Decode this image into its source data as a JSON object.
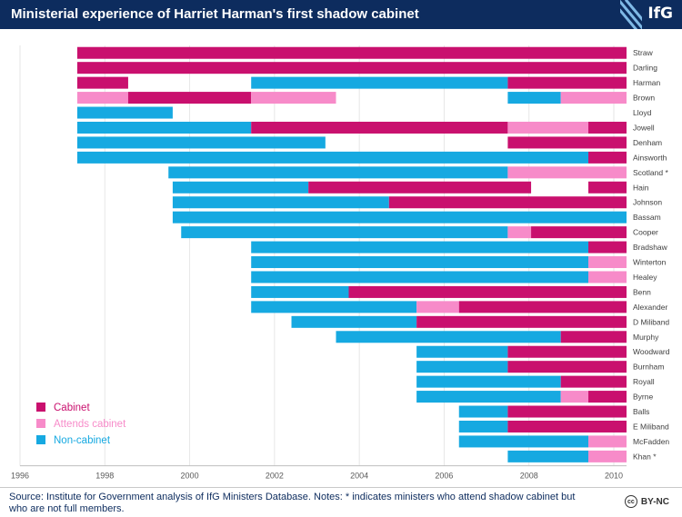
{
  "header": {
    "title": "Ministerial experience of Harriet Harman's first shadow cabinet",
    "logo": "IfG"
  },
  "footer": {
    "source": "Source: Institute for Government analysis of IfG Ministers Database. Notes: * indicates ministers who attend shadow cabinet but who are not full members.",
    "license": "BY-NC",
    "license_icon": "creative-commons-icon"
  },
  "chart_data": {
    "type": "bar",
    "orientation": "horizontal-timeline",
    "xlim": [
      1996,
      2010.3
    ],
    "x_ticks": [
      1996,
      1998,
      2000,
      2002,
      2004,
      2006,
      2008,
      2010
    ],
    "grid": true,
    "legend_position": "bottom-left",
    "legend": [
      {
        "key": "cabinet",
        "label": "Cabinet"
      },
      {
        "key": "attends",
        "label": "Attends cabinet"
      },
      {
        "key": "noncabinet",
        "label": "Non-cabinet"
      }
    ],
    "colors": {
      "cabinet": "#c9106e",
      "attends": "#f78bc9",
      "noncabinet": "#16a9e1"
    },
    "rows": [
      {
        "name": "Straw",
        "segments": [
          [
            1997.35,
            2010.3,
            "cabinet"
          ]
        ]
      },
      {
        "name": "Darling",
        "segments": [
          [
            1997.35,
            2010.3,
            "cabinet"
          ]
        ]
      },
      {
        "name": "Harman",
        "segments": [
          [
            1997.35,
            1998.55,
            "cabinet"
          ],
          [
            2001.45,
            2007.5,
            "noncabinet"
          ],
          [
            2007.5,
            2010.3,
            "cabinet"
          ]
        ]
      },
      {
        "name": "Brown",
        "segments": [
          [
            1997.35,
            1998.55,
            "attends"
          ],
          [
            1998.55,
            2001.45,
            "cabinet"
          ],
          [
            2001.45,
            2003.45,
            "attends"
          ],
          [
            2007.5,
            2008.75,
            "noncabinet"
          ],
          [
            2008.75,
            2010.3,
            "attends"
          ]
        ]
      },
      {
        "name": "Lloyd",
        "segments": [
          [
            1997.35,
            1999.6,
            "noncabinet"
          ]
        ]
      },
      {
        "name": "Jowell",
        "segments": [
          [
            1997.35,
            2001.45,
            "noncabinet"
          ],
          [
            2001.45,
            2007.5,
            "cabinet"
          ],
          [
            2007.5,
            2009.4,
            "attends"
          ],
          [
            2009.4,
            2010.3,
            "cabinet"
          ]
        ]
      },
      {
        "name": "Denham",
        "segments": [
          [
            1997.35,
            2003.2,
            "noncabinet"
          ],
          [
            2007.5,
            2010.3,
            "cabinet"
          ]
        ]
      },
      {
        "name": "Ainsworth",
        "segments": [
          [
            1997.35,
            2009.4,
            "noncabinet"
          ],
          [
            2009.4,
            2010.3,
            "cabinet"
          ]
        ]
      },
      {
        "name": "Scotland *",
        "segments": [
          [
            1999.5,
            2007.5,
            "noncabinet"
          ],
          [
            2007.5,
            2010.3,
            "attends"
          ]
        ]
      },
      {
        "name": "Hain",
        "segments": [
          [
            1999.6,
            2002.8,
            "noncabinet"
          ],
          [
            2002.8,
            2008.05,
            "cabinet"
          ],
          [
            2009.4,
            2010.3,
            "cabinet"
          ]
        ]
      },
      {
        "name": "Johnson",
        "segments": [
          [
            1999.6,
            2004.7,
            "noncabinet"
          ],
          [
            2004.7,
            2010.3,
            "cabinet"
          ]
        ]
      },
      {
        "name": "Bassam",
        "segments": [
          [
            1999.6,
            2010.3,
            "noncabinet"
          ]
        ]
      },
      {
        "name": "Cooper",
        "segments": [
          [
            1999.8,
            2007.5,
            "noncabinet"
          ],
          [
            2007.5,
            2008.05,
            "attends"
          ],
          [
            2008.05,
            2010.3,
            "cabinet"
          ]
        ]
      },
      {
        "name": "Bradshaw",
        "segments": [
          [
            2001.45,
            2009.4,
            "noncabinet"
          ],
          [
            2009.4,
            2010.3,
            "cabinet"
          ]
        ]
      },
      {
        "name": "Winterton",
        "segments": [
          [
            2001.45,
            2009.4,
            "noncabinet"
          ],
          [
            2009.4,
            2010.3,
            "attends"
          ]
        ]
      },
      {
        "name": "Healey",
        "segments": [
          [
            2001.45,
            2009.4,
            "noncabinet"
          ],
          [
            2009.4,
            2010.3,
            "attends"
          ]
        ]
      },
      {
        "name": "Benn",
        "segments": [
          [
            2001.45,
            2003.75,
            "noncabinet"
          ],
          [
            2003.75,
            2010.3,
            "cabinet"
          ]
        ]
      },
      {
        "name": "Alexander",
        "segments": [
          [
            2001.45,
            2005.35,
            "noncabinet"
          ],
          [
            2005.35,
            2006.35,
            "attends"
          ],
          [
            2006.35,
            2010.3,
            "cabinet"
          ]
        ]
      },
      {
        "name": "D Miliband",
        "segments": [
          [
            2002.4,
            2005.35,
            "noncabinet"
          ],
          [
            2005.35,
            2010.3,
            "cabinet"
          ]
        ]
      },
      {
        "name": "Murphy",
        "segments": [
          [
            2003.45,
            2008.75,
            "noncabinet"
          ],
          [
            2008.75,
            2010.3,
            "cabinet"
          ]
        ]
      },
      {
        "name": "Woodward",
        "segments": [
          [
            2005.35,
            2007.5,
            "noncabinet"
          ],
          [
            2007.5,
            2010.3,
            "cabinet"
          ]
        ]
      },
      {
        "name": "Burnham",
        "segments": [
          [
            2005.35,
            2007.5,
            "noncabinet"
          ],
          [
            2007.5,
            2010.3,
            "cabinet"
          ]
        ]
      },
      {
        "name": "Royall",
        "segments": [
          [
            2005.35,
            2008.75,
            "noncabinet"
          ],
          [
            2008.75,
            2010.3,
            "cabinet"
          ]
        ]
      },
      {
        "name": "Byrne",
        "segments": [
          [
            2005.35,
            2008.75,
            "noncabinet"
          ],
          [
            2008.75,
            2009.4,
            "attends"
          ],
          [
            2009.4,
            2010.3,
            "cabinet"
          ]
        ]
      },
      {
        "name": "Balls",
        "segments": [
          [
            2006.35,
            2007.5,
            "noncabinet"
          ],
          [
            2007.5,
            2010.3,
            "cabinet"
          ]
        ]
      },
      {
        "name": "E Miliband",
        "segments": [
          [
            2006.35,
            2007.5,
            "noncabinet"
          ],
          [
            2007.5,
            2010.3,
            "cabinet"
          ]
        ]
      },
      {
        "name": "McFadden",
        "segments": [
          [
            2006.35,
            2009.4,
            "noncabinet"
          ],
          [
            2009.4,
            2010.3,
            "attends"
          ]
        ]
      },
      {
        "name": "Khan *",
        "segments": [
          [
            2007.5,
            2009.4,
            "noncabinet"
          ],
          [
            2009.4,
            2010.3,
            "attends"
          ]
        ]
      }
    ]
  }
}
